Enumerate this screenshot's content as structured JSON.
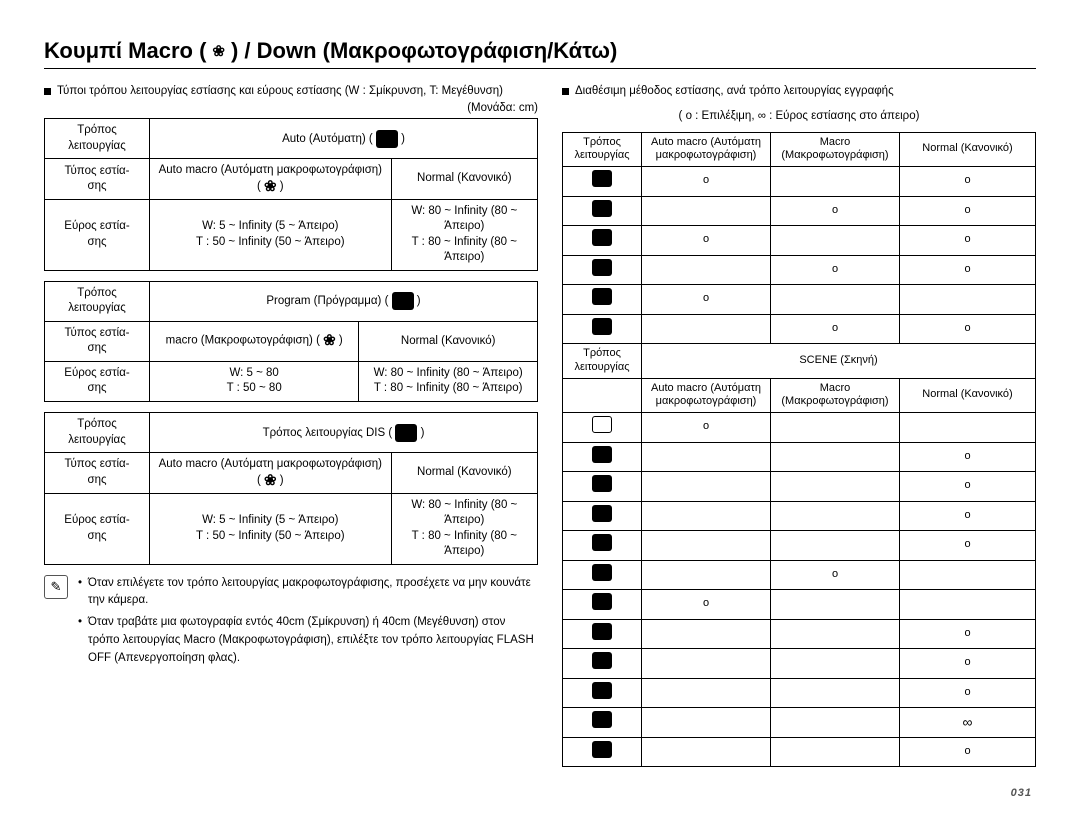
{
  "page_number": "031",
  "title_pre": "Κουμπί Macro (",
  "title_post": ") / Down (Μακροφωτογράφιση/Κάτω)",
  "tulip_glyph": "❀",
  "left": {
    "lead": "Τύποι τρόπου λειτουργίας εστίασης και εύρους εστίασης (W : Σμίκρυνση, T: Μεγέθυνση)",
    "unit": "(Μονάδα: cm)",
    "row_mode_label": "Τρόπος λειτουργίας",
    "row_type_label": "Τύπος εστία-\nσης",
    "row_range_label": "Εύρος εστία-\nσης",
    "blocks": [
      {
        "mode": "Auto (Αυτόματη) ( ",
        "type_a": "Auto macro (Αυτόματη μακροφωτογράφιση) ( ",
        "type_b": "Normal (Κανονικό)",
        "range_a": "W: 5 ~ Infinity (5 ~ Άπειρο)\nT : 50 ~ Infinity (50 ~ Άπειρο)",
        "range_b": "W: 80 ~ Infinity (80 ~ Άπειρο)\nT : 80 ~ Infinity (80 ~ Άπειρο)"
      },
      {
        "mode": "Program (Πρόγραμμα) ( ",
        "type_a": "macro (Μακροφωτογράφιση) ( ",
        "type_b": "Normal (Κανονικό)",
        "range_a": "W: 5 ~ 80\nT : 50 ~ 80",
        "range_b": "W: 80 ~ Infinity (80 ~ Άπειρο)\nT : 80 ~ Infinity (80 ~ Άπειρο)"
      },
      {
        "mode": "Τρόπος λειτουργίας DIS ( ",
        "type_a": "Auto macro (Αυτόματη μακροφωτογράφιση) ( ",
        "type_b": "Normal (Κανονικό)",
        "range_a": "W: 5 ~ Infinity (5 ~ Άπειρο)\nT : 50 ~ Infinity (50 ~ Άπειρο)",
        "range_b": "W: 80 ~ Infinity (80 ~ Άπειρο)\nT : 80 ~ Infinity (80 ~ Άπειρο)"
      }
    ],
    "notes": [
      "Όταν επιλέγετε τον τρόπο λειτουργίας μακροφωτογράφισης, προσέχετε να μην κουνάτε την κάμερα.",
      "Όταν τραβάτε μια φωτογραφία εντός 40cm (Σμίκρυνση) ή 40cm (Μεγέθυνση) στον τρόπο λειτουργίας Macro (Μακροφωτογράφιση), επιλέξτε τον τρόπο λειτουργίας FLASH OFF (Απενεργοποίηση φλας)."
    ],
    "note_glyph": "✎"
  },
  "right": {
    "lead": "Διαθέσιμη μέθοδος εστίασης, ανά τρόπο λειτουργίας εγγραφής",
    "legend": "( o : Επιλέξιμη, ∞ : Εύρος εστίασης στο άπειρο)",
    "mode_label": "Τρόπος λειτουργίας",
    "col_auto": "Auto macro (Αυτόματη μακροφωτογράφιση)",
    "col_macro": "Macro (Μακροφωτογράφιση)",
    "col_normal": "Normal (Κανονικό)",
    "scene_label": "SCENE (Σκηνή)",
    "upper_rows": [
      {
        "auto": "o",
        "macro": "",
        "normal": "o"
      },
      {
        "auto": "",
        "macro": "o",
        "normal": "o"
      },
      {
        "auto": "o",
        "macro": "",
        "normal": "o"
      },
      {
        "auto": "",
        "macro": "o",
        "normal": "o"
      },
      {
        "auto": "o",
        "macro": "",
        "normal": ""
      },
      {
        "auto": "",
        "macro": "o",
        "normal": "o"
      }
    ],
    "scene_rows": [
      {
        "outline": true,
        "auto": "o",
        "macro": "",
        "normal": ""
      },
      {
        "outline": false,
        "auto": "",
        "macro": "",
        "normal": "o"
      },
      {
        "outline": false,
        "auto": "",
        "macro": "",
        "normal": "o"
      },
      {
        "outline": false,
        "auto": "",
        "macro": "",
        "normal": "o"
      },
      {
        "outline": false,
        "auto": "",
        "macro": "",
        "normal": "o"
      },
      {
        "outline": false,
        "auto": "",
        "macro": "o",
        "normal": ""
      },
      {
        "outline": false,
        "auto": "o",
        "macro": "",
        "normal": ""
      },
      {
        "outline": false,
        "auto": "",
        "macro": "",
        "normal": "o"
      },
      {
        "outline": false,
        "auto": "",
        "macro": "",
        "normal": "o"
      },
      {
        "outline": false,
        "auto": "",
        "macro": "",
        "normal": "o"
      },
      {
        "outline": false,
        "auto": "",
        "macro": "",
        "normal": "∞"
      },
      {
        "outline": false,
        "auto": "",
        "macro": "",
        "normal": "o"
      }
    ]
  }
}
